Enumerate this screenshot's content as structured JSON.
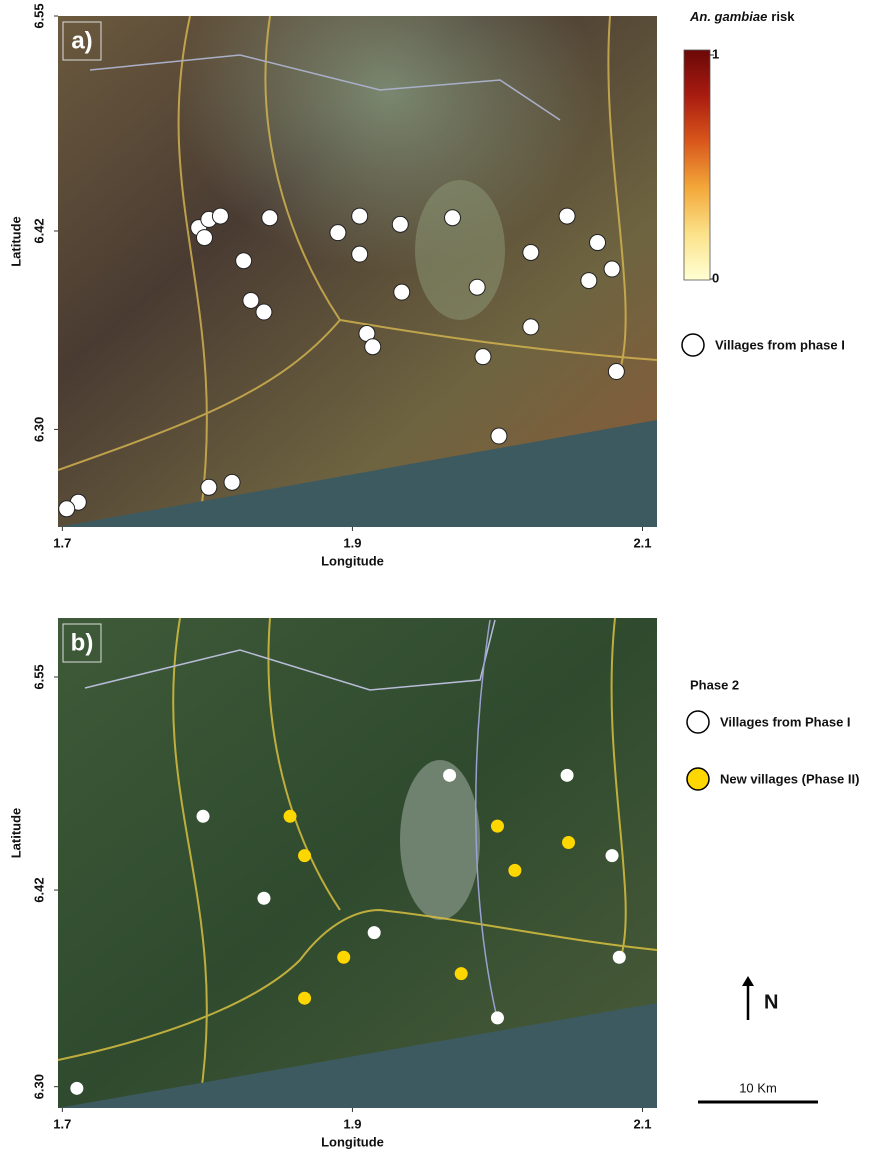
{
  "chart_data": [
    {
      "type": "scatter",
      "label": "a)",
      "xlabel": "Longitude",
      "ylabel": "Latitude",
      "xlim": [
        1.697,
        2.11
      ],
      "ylim": [
        6.241,
        6.55
      ],
      "xticks": [
        1.7,
        1.9,
        2.1
      ],
      "yticks": [
        {
          "value": 6.3,
          "label": "6.30"
        },
        6.42,
        6.55
      ],
      "colorbar": {
        "title_italic": "An. gambiae",
        "title": "risk",
        "ticks": [
          0,
          1
        ],
        "colors": [
          "#ffffd4",
          "#fbe28a",
          "#f3a83a",
          "#d9581c",
          "#a91c10",
          "#6b0808"
        ]
      },
      "series": [
        {
          "name": "Villages from phase I",
          "color": "#ffffff",
          "x": [
            1.794,
            1.801,
            1.809,
            1.798,
            1.825,
            1.843,
            1.83,
            1.839,
            1.89,
            1.905,
            1.905,
            1.933,
            1.969,
            1.934,
            1.91,
            1.914,
            1.986,
            2.023,
            2.048,
            2.069,
            2.079,
            2.063,
            2.023,
            1.99,
            2.082,
            2.001,
            1.801,
            1.817,
            1.711,
            1.703
          ],
          "y": [
            6.422,
            6.427,
            6.429,
            6.416,
            6.402,
            6.428,
            6.378,
            6.371,
            6.419,
            6.429,
            6.406,
            6.424,
            6.428,
            6.383,
            6.358,
            6.35,
            6.386,
            6.407,
            6.429,
            6.413,
            6.397,
            6.39,
            6.362,
            6.344,
            6.335,
            6.296,
            6.265,
            6.268,
            6.256,
            6.252
          ]
        }
      ]
    },
    {
      "type": "scatter",
      "label": "b)",
      "xlabel": "Longitude",
      "ylabel": "Latitude",
      "xlim": [
        1.697,
        2.11
      ],
      "ylim": [
        6.287,
        6.586
      ],
      "xticks": [
        1.7,
        1.9,
        2.1
      ],
      "yticks": [
        {
          "value": 6.3,
          "label": "6.30"
        },
        6.42,
        6.55
      ],
      "legend_title": "Phase 2",
      "north": "N",
      "scale_bar": "10 Km",
      "series": [
        {
          "name": "Villages from Phase I",
          "color": "#ffffff",
          "x": [
            1.797,
            1.967,
            2.048,
            2.079,
            1.839,
            1.915,
            2.084,
            2.0,
            1.71
          ],
          "y": [
            6.465,
            6.49,
            6.49,
            6.441,
            6.415,
            6.394,
            6.379,
            6.342,
            6.299
          ]
        },
        {
          "name": "New villages (Phase II)",
          "color": "#ffd700",
          "x": [
            1.857,
            1.867,
            2.0,
            2.049,
            2.012,
            1.894,
            1.867,
            1.975
          ],
          "y": [
            6.465,
            6.441,
            6.459,
            6.449,
            6.432,
            6.379,
            6.354,
            6.369
          ]
        }
      ]
    }
  ]
}
